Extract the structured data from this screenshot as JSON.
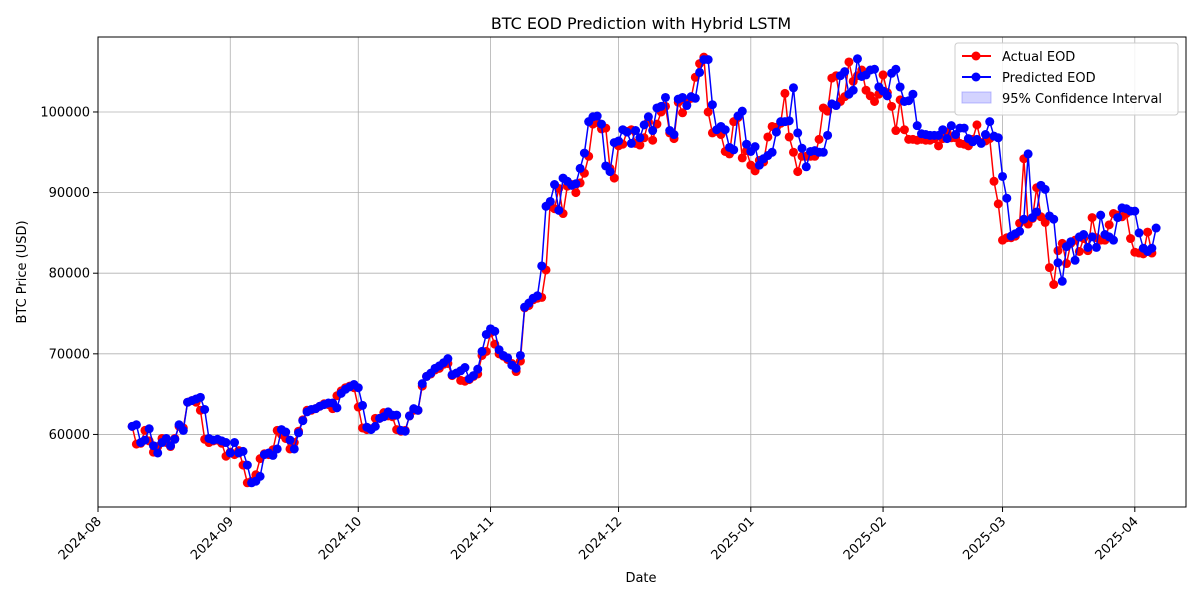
{
  "chart_data": {
    "type": "line",
    "title": "BTC EOD Prediction with Hybrid LSTM",
    "xlabel": "Date",
    "ylabel": "BTC Price (USD)",
    "xlim": [
      "2024-08-01",
      "2025-04-13"
    ],
    "ylim": [
      51000,
      109300
    ],
    "y_ticks": [
      60000,
      70000,
      80000,
      90000,
      100000
    ],
    "x_ticks": [
      "2024-08",
      "2024-09",
      "2024-10",
      "2024-11",
      "2024-12",
      "2025-01",
      "2025-02",
      "2025-03",
      "2025-04"
    ],
    "x_tick_dates": [
      "2024-08-01",
      "2024-09-01",
      "2024-10-01",
      "2024-11-01",
      "2024-12-01",
      "2025-01-01",
      "2025-02-01",
      "2025-03-01",
      "2025-04-01"
    ],
    "grid": true,
    "legend_position": "top-right",
    "start_date": "2024-08-09",
    "series": [
      {
        "name": "Actual EOD",
        "color": "#ff0000",
        "values": [
          61000,
          58800,
          58900,
          60500,
          59200,
          57800,
          58500,
          59500,
          59000,
          58500,
          59500,
          61000,
          60800,
          64000,
          64200,
          64000,
          63000,
          59400,
          59000,
          59200,
          59300,
          58900,
          57300,
          57800,
          57500,
          58000,
          56200,
          54000,
          54200,
          55000,
          57000,
          57600,
          57500,
          58100,
          60500,
          60000,
          59500,
          58200,
          59000,
          60400,
          61800,
          63000,
          63000,
          63200,
          63500,
          63800,
          63700,
          63200,
          64800,
          65400,
          65800,
          66000,
          65800,
          63400,
          60800,
          60600,
          60700,
          62000,
          62000,
          62700,
          62300,
          62200,
          60600,
          60400,
          60500,
          62300,
          63000,
          63000,
          66000,
          67200,
          67500,
          68000,
          68200,
          68700,
          68800,
          67300,
          67600,
          66700,
          66600,
          66800,
          67200,
          67500,
          69800,
          70300,
          72600,
          71200,
          70000,
          69700,
          69300,
          68800,
          67800,
          69100,
          75700,
          76000,
          76700,
          76900,
          77000,
          80400,
          88800,
          88000,
          90500,
          87400,
          90800,
          91000,
          90000,
          91200,
          92400,
          94500,
          98500,
          98700,
          97900,
          98000,
          93000,
          91800,
          95800,
          96000,
          97600,
          97800,
          96100,
          95900,
          96800,
          98800,
          96500,
          98500,
          100000,
          100700,
          97400,
          96700,
          101200,
          99900,
          101200,
          101700,
          104300,
          106000,
          106800,
          100000,
          97400,
          97600,
          97200,
          95100,
          94800,
          98800,
          99300,
          94300,
          95200,
          93400,
          92700,
          94000,
          93800,
          96900,
          98200,
          98100,
          98600,
          102300,
          96900,
          95000,
          92600,
          94500,
          94500,
          94500,
          94500,
          96600,
          100500,
          100100,
          104200,
          104500,
          101300,
          101900,
          106200,
          103800,
          104500,
          105200,
          102700,
          102000,
          101300,
          102200,
          104600,
          102400,
          100700,
          97700,
          101500,
          97800,
          96600,
          96600,
          96500,
          96600,
          96500,
          96500,
          96700,
          95800,
          96700,
          97500,
          96800,
          96800,
          96100,
          96000,
          95800,
          96600,
          98400,
          96200,
          96400,
          96700,
          91400,
          88600,
          84100,
          84400,
          84400,
          84600,
          86200,
          94200,
          86100,
          86800,
          90600,
          87000,
          86300,
          80700,
          78600,
          82800,
          83700,
          81200,
          83700,
          84100,
          82700,
          84300,
          82800,
          86900,
          84400,
          84100,
          84100,
          86000,
          87400,
          87200,
          87000,
          87400,
          84300,
          82600,
          82500,
          82400,
          85100,
          82500
        ],
        "predicted": [
          61000,
          61200,
          59000,
          59300,
          60700,
          58600,
          57700,
          59000,
          59500,
          58600,
          59400,
          61200,
          60500,
          64000,
          64200,
          64400,
          64600,
          63100,
          59500,
          59300,
          59400,
          59200,
          59000,
          57700,
          59000,
          57700,
          57900,
          56200,
          54000,
          54200,
          54800,
          57500,
          57700,
          57400,
          58200,
          60600,
          60300,
          59300,
          58200,
          60200,
          61700,
          62800,
          63100,
          63200,
          63500,
          63700,
          63900,
          63900,
          63300,
          65100,
          65600,
          65900,
          66200,
          65800,
          63600,
          60900,
          60600,
          61000,
          62000,
          62200,
          62800,
          62400,
          62400,
          60500,
          60400,
          62300,
          63200,
          63000,
          66300,
          67200,
          67600,
          68200,
          68500,
          68900,
          69400,
          67400,
          67600,
          67900,
          68300,
          66900,
          67300,
          68100,
          70300,
          72400,
          73100,
          72800,
          70500,
          69800,
          69500,
          68600,
          68200,
          69800,
          75800,
          76300,
          76900,
          77200,
          80900,
          88300,
          88900,
          91000,
          87800,
          91800,
          91400,
          90900,
          91100,
          93000,
          94900,
          98800,
          99400,
          99500,
          98500,
          93300,
          92600,
          96200,
          96400,
          97800,
          97500,
          96100,
          97700,
          96800,
          98400,
          99400,
          97700,
          100500,
          100700,
          101800,
          97700,
          97200,
          101600,
          101800,
          100800,
          101900,
          101700,
          104900,
          106500,
          106500,
          100900,
          97800,
          98200,
          97800,
          95600,
          95300,
          99500,
          100100,
          96000,
          95100,
          95700,
          93400,
          94200,
          94600,
          95000,
          97500,
          98800,
          98800,
          98900,
          103000,
          97400,
          95500,
          93200,
          95100,
          95200,
          95000,
          95000,
          97100,
          101000,
          100800,
          104500,
          105000,
          102200,
          102700,
          106600,
          104400,
          104600,
          105200,
          105300,
          103100,
          102600,
          102000,
          104800,
          105300,
          103100,
          101300,
          101400,
          102200,
          98300,
          97300,
          97200,
          97100,
          97100,
          97100,
          97800,
          96700,
          98300,
          97200,
          98000,
          98000,
          96700,
          96300,
          96600,
          96100,
          97200,
          98800,
          97000,
          96800,
          92000,
          89300,
          84600,
          84900,
          85200,
          86700,
          94800,
          86900,
          87600,
          90900,
          90400,
          87100,
          86700,
          81300,
          79000,
          83300,
          83900,
          81600,
          84500,
          84800,
          83200,
          84500,
          83200,
          87200,
          84800,
          84500,
          84100,
          86900,
          88100,
          88000,
          87700,
          87700,
          85000,
          83100,
          82700,
          83100,
          85600
        ]
      }
    ],
    "predicted_name": "Predicted EOD",
    "predicted_color": "#0000ff",
    "interval_name": "95% Confidence Interval",
    "interval_color": "#8080ff"
  }
}
